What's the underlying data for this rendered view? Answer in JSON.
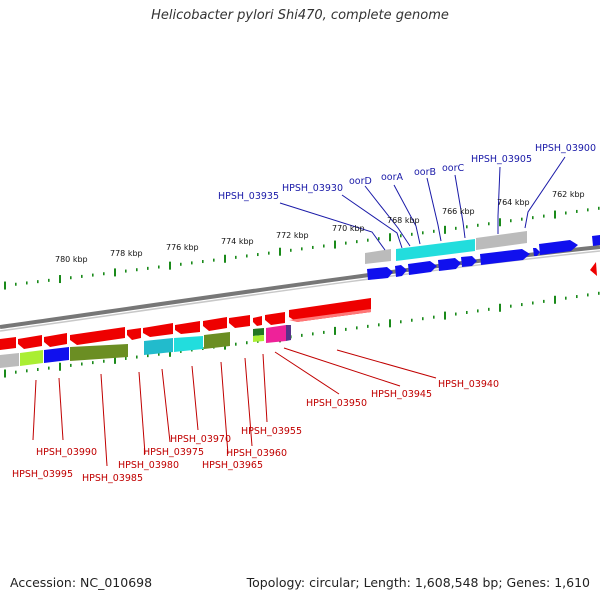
{
  "title": "Helicobacter pylori Shi470, complete genome",
  "footer": {
    "accession": "Accession: NC_010698",
    "summary": "Topology: circular; Length: 1,608,548 bp; Genes: 1,610"
  },
  "scale_labels": [
    "780 kbp",
    "778 kbp",
    "776 kbp",
    "774 kbp",
    "772 kbp",
    "770 kbp",
    "768 kbp",
    "766 kbp",
    "764 kbp",
    "762 kbp"
  ],
  "upper_gene_labels": [
    "HPSH_03935",
    "HPSH_03930",
    "oorD",
    "oorA",
    "oorB",
    "oorC",
    "HPSH_03905",
    "HPSH_03900"
  ],
  "lower_gene_labels": [
    "HPSH_03990",
    "HPSH_03995",
    "HPSH_03985",
    "HPSH_03980",
    "HPSH_03975",
    "HPSH_03970",
    "HPSH_03965",
    "HPSH_03960",
    "HPSH_03955",
    "HPSH_03950",
    "HPSH_03945",
    "HPSH_03940"
  ],
  "colors": {
    "forward_gene": "#1010ee",
    "reverse_gene": "#ee0000",
    "upper_label": "#1a1aa8",
    "lower_label": "#c00000",
    "tick_mark": "#1a8a1a",
    "backbone": "#8a8a8a",
    "cog_cyan": "#22dddd",
    "cog_gray": "#bbbbbb",
    "cog_olive": "#6b8e23",
    "cog_lime": "#aaee33",
    "cog_magenta": "#ee2299",
    "cog_darkgreen": "#227722",
    "cog_purple": "#553388"
  }
}
